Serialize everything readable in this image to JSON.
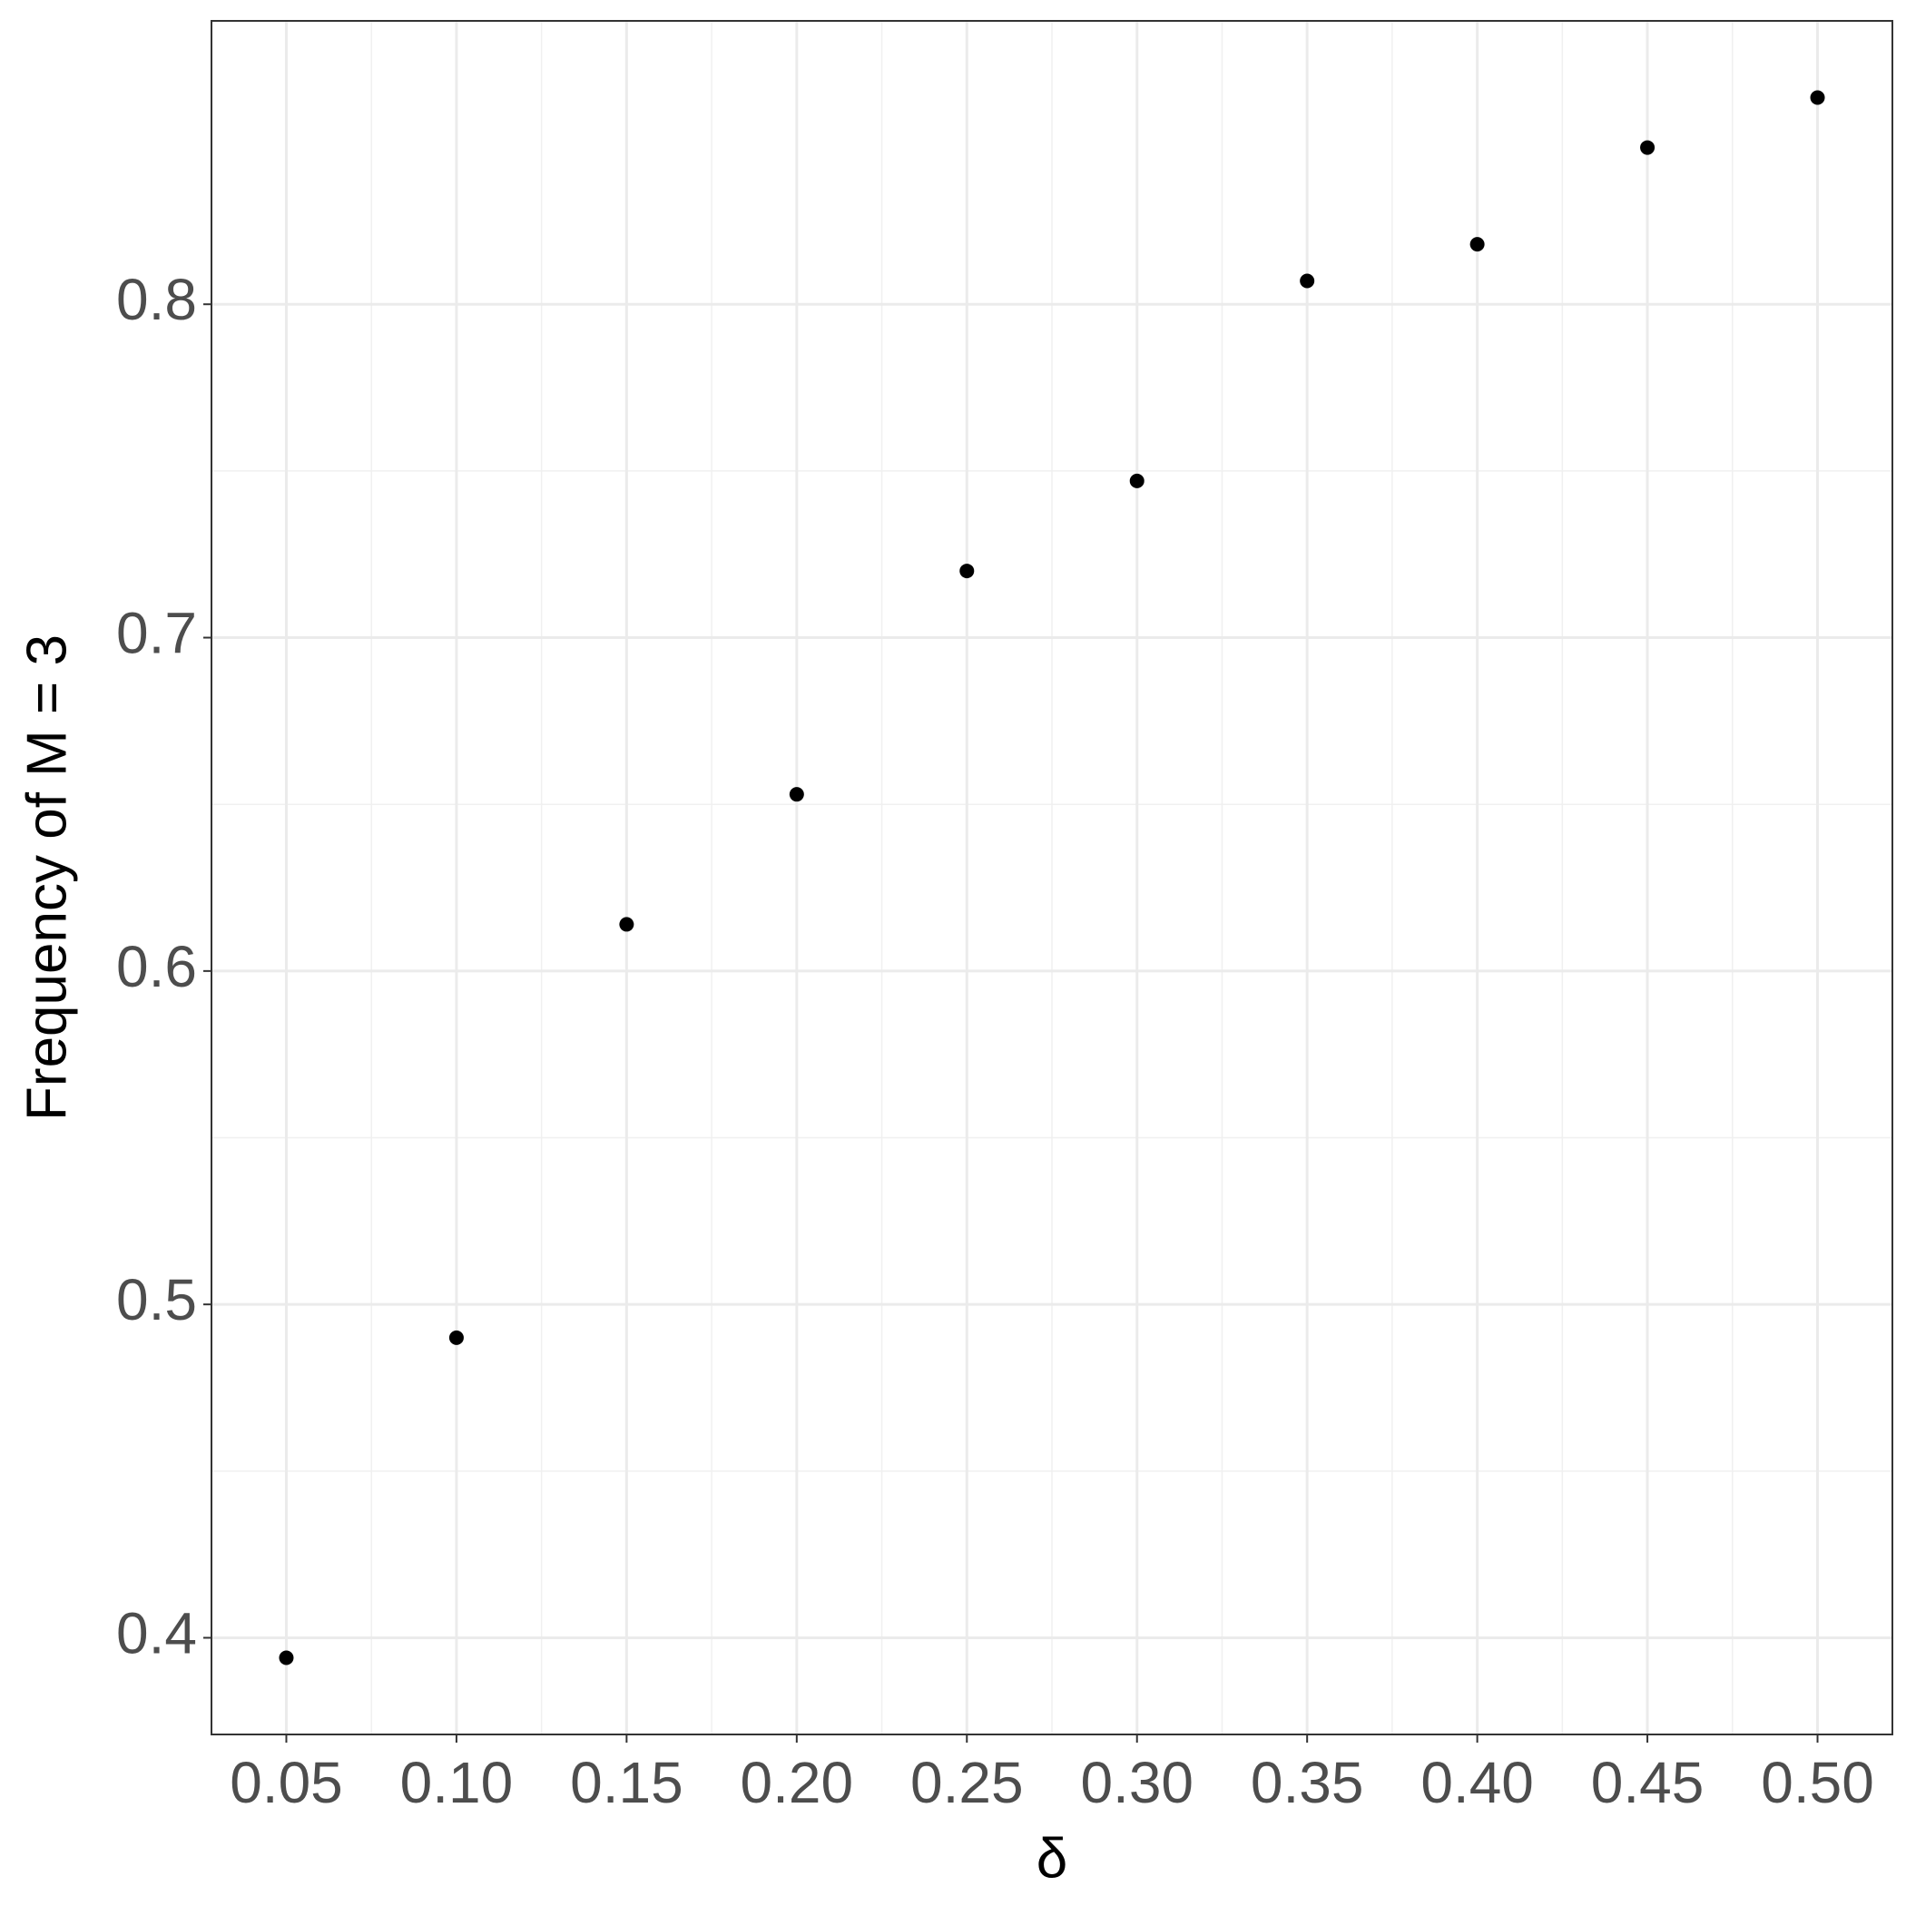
{
  "chart_data": {
    "type": "scatter",
    "x_label": "δ",
    "y_label": "Frequency of M = 3",
    "x": [
      0.05,
      0.1,
      0.15,
      0.2,
      0.25,
      0.3,
      0.35,
      0.4,
      0.45,
      0.5
    ],
    "values": [
      0.394,
      0.49,
      0.614,
      0.653,
      0.72,
      0.747,
      0.807,
      0.818,
      0.847,
      0.862
    ],
    "color": "#000000",
    "xlim": [
      0.028,
      0.522
    ],
    "ylim": [
      0.371,
      0.885
    ],
    "xticks": [
      0.05,
      {
        "value": 0.1,
        "label": "0.10"
      },
      0.15,
      {
        "value": 0.2,
        "label": "0.20"
      },
      0.25,
      {
        "value": 0.3,
        "label": "0.30"
      },
      0.35,
      {
        "value": 0.4,
        "label": "0.40"
      },
      0.45,
      {
        "value": 0.5,
        "label": "0.50"
      }
    ],
    "yticks": [
      0.4,
      0.5,
      0.6,
      0.7,
      0.8
    ],
    "grid": true
  }
}
